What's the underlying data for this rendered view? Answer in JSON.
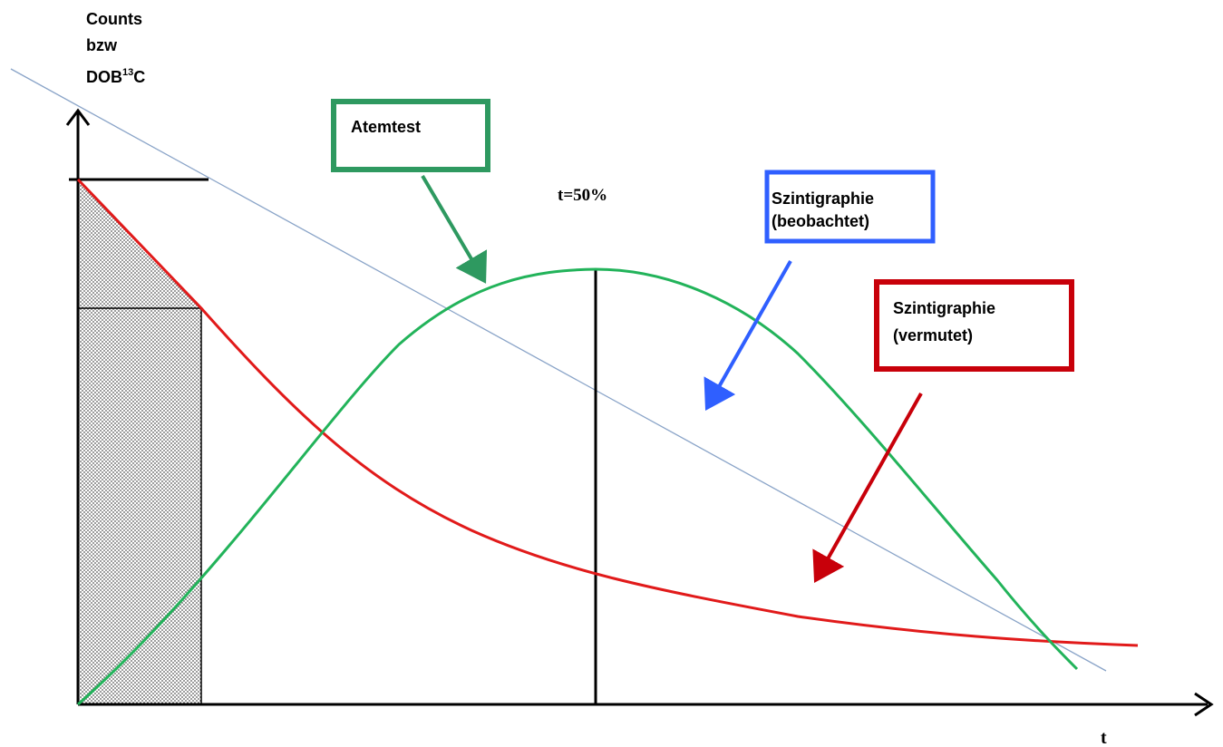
{
  "y_axis_label": {
    "line1": "Counts",
    "line2": "bzw",
    "line3_main": "DOB",
    "line3_sup": "13",
    "line3_end": "C"
  },
  "x_axis_label": "t",
  "marker_label": "t=50%",
  "callouts": {
    "atemtest": {
      "text": "Atemtest",
      "color": "#2e9960"
    },
    "szint_beobachtet": {
      "line1": "Szintigraphie",
      "line2": "(beobachtet)",
      "color": "#2f5fff"
    },
    "szint_vermutet": {
      "line1": "Szintigraphie",
      "line2": "(vermutet)",
      "color": "#c8000a"
    }
  },
  "colors": {
    "red_curve": "#e11a1a",
    "green_curve": "#22b35a",
    "blue_line": "#8aa4c8",
    "axis": "#000000"
  }
}
